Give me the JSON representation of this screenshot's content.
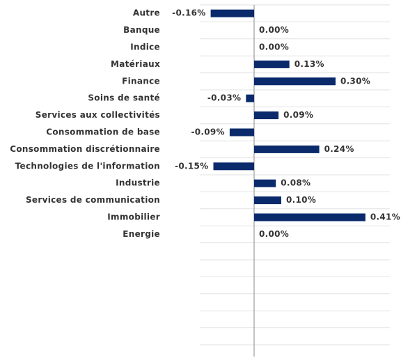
{
  "chart_data": {
    "type": "barh",
    "categories": [
      "Autre",
      "Banque",
      "Indice",
      "Matériaux",
      "Finance",
      "Soins de santé",
      "Services aux collectivités",
      "Consommation de base",
      "Consommation discrétionnaire",
      "Technologies de l'information",
      "Industrie",
      "Services de communication",
      "Immobilier",
      "Energie"
    ],
    "values": [
      -0.16,
      0,
      0,
      0.13,
      0.3,
      -0.03,
      0.09,
      -0.09,
      0.24,
      -0.15,
      0.08,
      0.1,
      0.41,
      0
    ],
    "value_labels": [
      "-0.16%",
      "0.00%",
      "0.00%",
      "0.13%",
      "0.30%",
      "-0.03%",
      "0.09%",
      "-0.09%",
      "0.24%",
      "-0.15%",
      "0.08%",
      "0.10%",
      "0.41%",
      "0.00%"
    ],
    "color": "#0a2a6b",
    "xlim": [
      -0.2,
      0.5
    ]
  }
}
